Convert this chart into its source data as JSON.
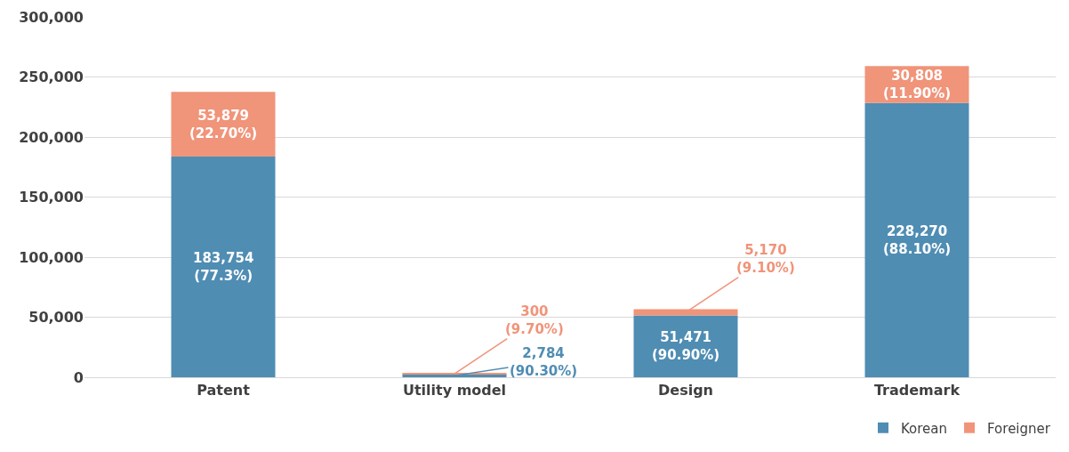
{
  "chart_data": {
    "type": "bar",
    "stacked": true,
    "categories": [
      "Patent",
      "Utility model",
      "Design",
      "Trademark"
    ],
    "series": [
      {
        "name": "Korean",
        "color": "#4f8db3",
        "values": [
          183754,
          2784,
          51471,
          228270
        ],
        "value_labels": [
          "183,754\n(77.3%)",
          "2,784\n(90.30%)",
          "51,471\n(90.90%)",
          "228,270\n(88.10%)"
        ]
      },
      {
        "name": "Foreigner",
        "color": "#f0947a",
        "values": [
          53879,
          300,
          5170,
          30808
        ],
        "value_labels": [
          "53,879\n(22.70%)",
          "300\n(9.70%)",
          "5,170\n(9.10%)",
          "30,808\n(11.90%)"
        ]
      }
    ],
    "ylim": [
      0,
      300000
    ],
    "yticks": [
      {
        "value": 0,
        "label": "0"
      },
      {
        "value": 50000,
        "label": "50,000"
      },
      {
        "value": 100000,
        "label": "100,000"
      },
      {
        "value": 150000,
        "label": "150,000"
      },
      {
        "value": 200000,
        "label": "200,000"
      },
      {
        "value": 250000,
        "label": "250,000"
      },
      {
        "value": 300000,
        "label": "300,000"
      }
    ],
    "grid": "y",
    "legend": "bottom right"
  }
}
